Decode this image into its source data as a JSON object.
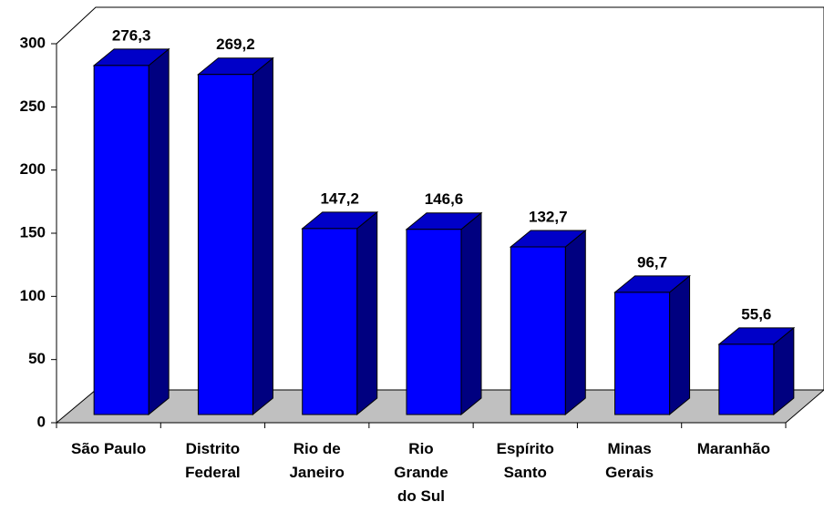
{
  "chart_data": {
    "type": "bar3d",
    "categories": [
      "São Paulo",
      "Distrito Federal",
      "Rio de Janeiro",
      "Rio Grande do Sul",
      "Espírito Santo",
      "Minas Gerais",
      "Maranhão"
    ],
    "values": [
      276.3,
      269.2,
      147.2,
      146.6,
      132.7,
      96.7,
      55.6
    ],
    "value_labels": [
      "276,3",
      "269,2",
      "147,2",
      "146,6",
      "132,7",
      "96,7",
      "55,6"
    ],
    "color": "#0000ff",
    "ylim": [
      0,
      300
    ],
    "yticks": [
      0,
      50,
      100,
      150,
      200,
      250,
      300
    ]
  }
}
